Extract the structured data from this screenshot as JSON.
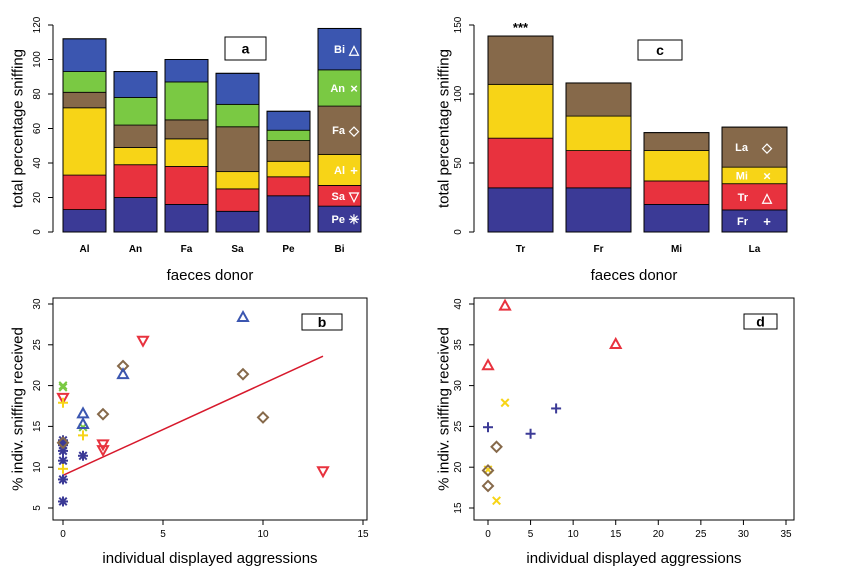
{
  "colors": {
    "navy": "#3b3a96",
    "red": "#e8323e",
    "yellow": "#f7d417",
    "brown": "#86694a",
    "green": "#7ac943",
    "blue": "#3b56b0",
    "regression": "#d7192c"
  },
  "chart_data": [
    {
      "id": "a",
      "type": "bar",
      "stacked": true,
      "panel_label": "a",
      "xlabel": "faeces donor",
      "ylabel": "total percentage sniffing",
      "ylim": [
        0,
        120
      ],
      "yticks": [
        0,
        20,
        40,
        60,
        80,
        100,
        120
      ],
      "categories": [
        "Al",
        "An",
        "Fa",
        "Sa",
        "Pe",
        "Bi"
      ],
      "series": [
        {
          "name": "Pe",
          "color": "navy",
          "values": [
            13,
            20,
            16,
            12,
            21,
            15
          ]
        },
        {
          "name": "Sa",
          "color": "red",
          "values": [
            20,
            19,
            22,
            13,
            11,
            12
          ]
        },
        {
          "name": "Al",
          "color": "yellow",
          "values": [
            39,
            10,
            16,
            10,
            9,
            18
          ]
        },
        {
          "name": "Fa",
          "color": "brown",
          "values": [
            9,
            13,
            11,
            26,
            12,
            28
          ]
        },
        {
          "name": "An",
          "color": "green",
          "values": [
            12,
            16,
            22,
            13,
            6,
            21
          ]
        },
        {
          "name": "Bi",
          "color": "blue",
          "values": [
            19,
            15,
            13,
            18,
            11,
            24
          ]
        }
      ],
      "legend": [
        {
          "label": "Bi",
          "symbol": "△",
          "color": "blue"
        },
        {
          "label": "An",
          "symbol": "×",
          "color": "green"
        },
        {
          "label": "Fa",
          "symbol": "◇",
          "color": "brown"
        },
        {
          "label": "Al",
          "symbol": "+",
          "color": "yellow"
        },
        {
          "label": "Sa",
          "symbol": "▽",
          "color": "red"
        },
        {
          "label": "Pe",
          "symbol": "✳",
          "color": "navy"
        }
      ]
    },
    {
      "id": "c",
      "type": "bar",
      "stacked": true,
      "panel_label": "c",
      "xlabel": "faeces donor",
      "ylabel": "total percentage sniffing",
      "ylim": [
        0,
        150
      ],
      "yticks": [
        0,
        50,
        100,
        150
      ],
      "categories": [
        "Tr",
        "Fr",
        "Mi",
        "La"
      ],
      "annotation": {
        "category": "Tr",
        "text": "***"
      },
      "series": [
        {
          "name": "Fr",
          "color": "navy",
          "values": [
            32,
            32,
            20,
            16
          ]
        },
        {
          "name": "Tr",
          "color": "red",
          "values": [
            36,
            27,
            17,
            19
          ]
        },
        {
          "name": "Mi",
          "color": "yellow",
          "values": [
            39,
            25,
            22,
            12
          ]
        },
        {
          "name": "La",
          "color": "brown",
          "values": [
            35,
            24,
            13,
            29
          ]
        }
      ],
      "legend": [
        {
          "label": "La",
          "symbol": "◇",
          "color": "brown"
        },
        {
          "label": "Mi",
          "symbol": "×",
          "color": "yellow"
        },
        {
          "label": "Tr",
          "symbol": "△",
          "color": "red"
        },
        {
          "label": "Fr",
          "symbol": "+",
          "color": "navy"
        }
      ]
    },
    {
      "id": "b",
      "type": "scatter",
      "panel_label": "b",
      "xlabel": "individual displayed aggressions",
      "ylabel": "% indiv. sniffing received",
      "xlim": [
        0,
        15
      ],
      "ylim": [
        5,
        30
      ],
      "xticks": [
        0,
        5,
        10,
        15
      ],
      "yticks": [
        5,
        10,
        15,
        20,
        25,
        30
      ],
      "regression": {
        "x": [
          0,
          13
        ],
        "y": [
          9.0,
          23.6
        ],
        "color": "regression"
      },
      "series": [
        {
          "name": "Pe",
          "color": "navy",
          "marker": "asterisk",
          "points": [
            [
              0,
              5.8
            ],
            [
              0,
              8.5
            ],
            [
              0,
              10.8
            ],
            [
              0,
              12.0
            ],
            [
              0,
              12.7
            ],
            [
              0,
              13.3
            ],
            [
              1,
              11.4
            ]
          ]
        },
        {
          "name": "Sa",
          "color": "red",
          "marker": "tri-down",
          "points": [
            [
              0,
              18.5
            ],
            [
              2,
              12.1
            ],
            [
              2,
              12.8
            ],
            [
              4,
              25.5
            ],
            [
              13,
              9.5
            ]
          ]
        },
        {
          "name": "Al",
          "color": "yellow",
          "marker": "plus",
          "points": [
            [
              0,
              9.8
            ],
            [
              0,
              17.9
            ],
            [
              1,
              13.9
            ]
          ]
        },
        {
          "name": "Fa",
          "color": "brown",
          "marker": "diamond",
          "points": [
            [
              0,
              13.0
            ],
            [
              2,
              16.5
            ],
            [
              3,
              22.4
            ],
            [
              9,
              21.4
            ],
            [
              10,
              16.1
            ]
          ]
        },
        {
          "name": "An",
          "color": "green",
          "marker": "x",
          "points": [
            [
              0,
              19.8
            ],
            [
              0,
              20.0
            ],
            [
              1,
              14.9
            ]
          ]
        },
        {
          "name": "Bi",
          "color": "blue",
          "marker": "tri-up",
          "points": [
            [
              1,
              16.6
            ],
            [
              1,
              15.3
            ],
            [
              3,
              21.4
            ],
            [
              9,
              28.4
            ]
          ]
        }
      ]
    },
    {
      "id": "d",
      "type": "scatter",
      "panel_label": "d",
      "xlabel": "individual displayed aggressions",
      "ylabel": "% indiv. sniffing received",
      "xlim": [
        0,
        35
      ],
      "ylim": [
        15,
        40
      ],
      "xticks": [
        0,
        5,
        10,
        15,
        20,
        25,
        30,
        35
      ],
      "yticks": [
        15,
        20,
        25,
        30,
        35,
        40
      ],
      "series": [
        {
          "name": "Tr",
          "color": "red",
          "marker": "tri-up",
          "points": [
            [
              0,
              32.5
            ],
            [
              2,
              39.8
            ],
            [
              15,
              35.1
            ]
          ]
        },
        {
          "name": "Fr",
          "color": "navy",
          "marker": "plus",
          "points": [
            [
              0,
              24.9
            ],
            [
              5,
              24.1
            ],
            [
              8,
              27.2
            ]
          ]
        },
        {
          "name": "Mi",
          "color": "yellow",
          "marker": "x",
          "points": [
            [
              0,
              19.7
            ],
            [
              1,
              15.9
            ],
            [
              2,
              27.9
            ]
          ]
        },
        {
          "name": "La",
          "color": "brown",
          "marker": "diamond",
          "points": [
            [
              0,
              17.7
            ],
            [
              0,
              19.6
            ],
            [
              1,
              22.5
            ]
          ]
        }
      ]
    }
  ]
}
